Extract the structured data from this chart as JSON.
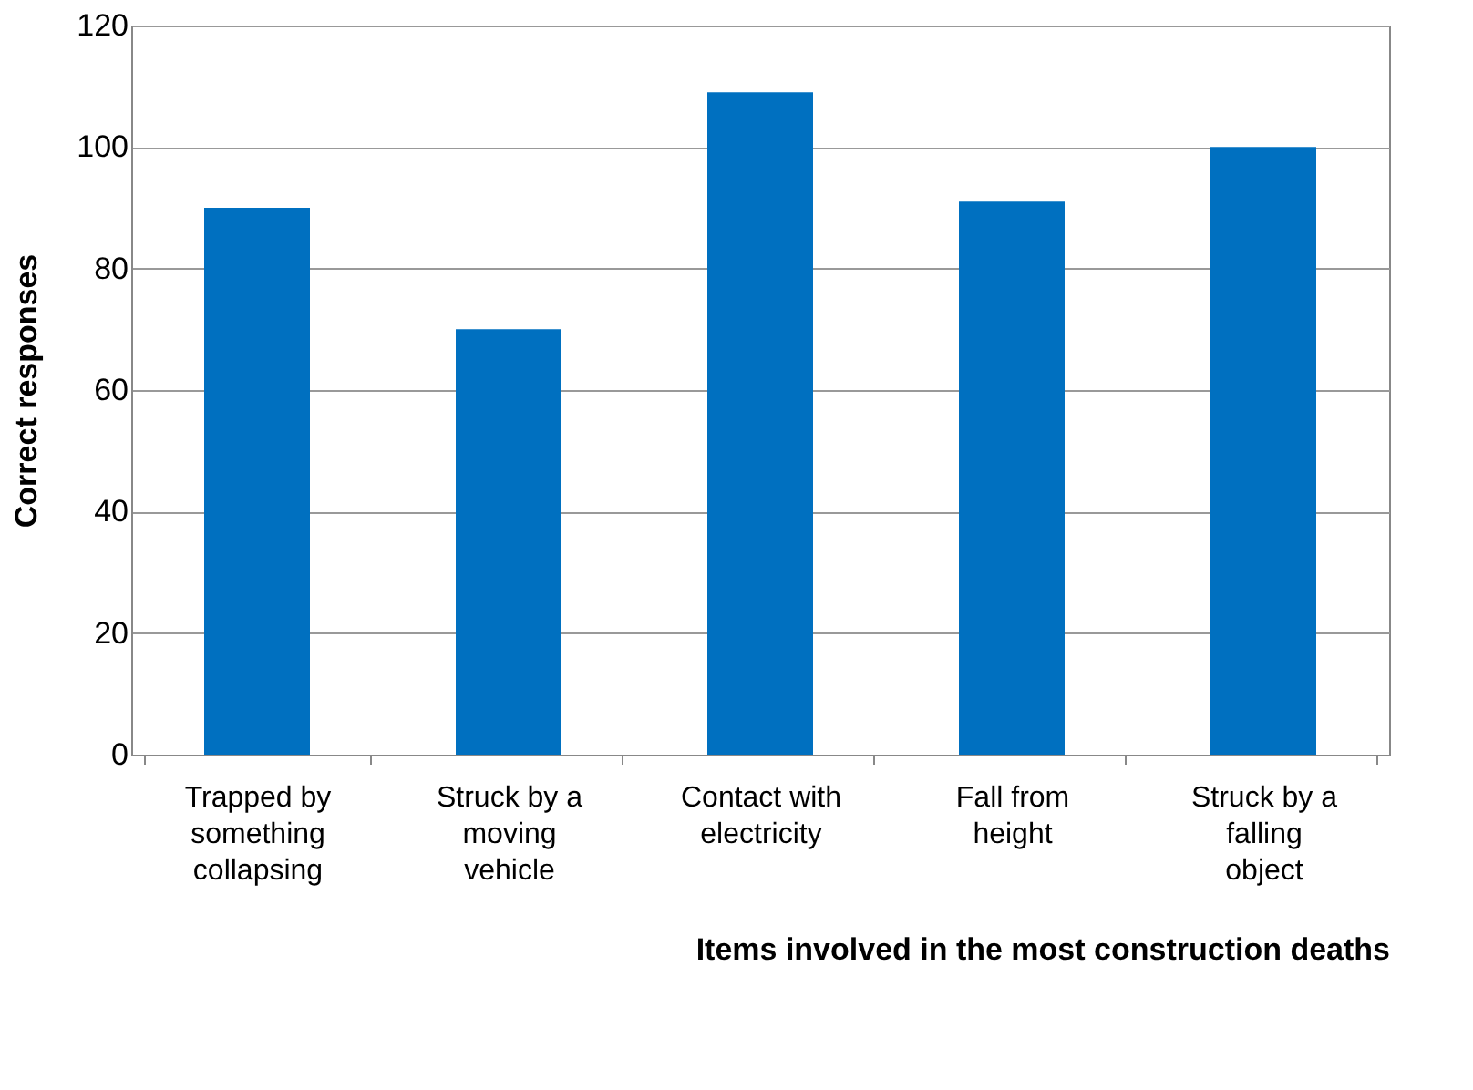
{
  "chart_data": {
    "type": "bar",
    "categories": [
      "Trapped by something collapsing",
      "Struck by a moving vehicle",
      "Contact with electricity",
      "Fall from height",
      "Struck by a falling object"
    ],
    "values": [
      90,
      70,
      109,
      91,
      100
    ],
    "color": "#0070c0",
    "xlabel": "Items involved in the most construction deaths",
    "ylabel": "Correct responses",
    "ylim": [
      0,
      120
    ],
    "yticks": [
      0,
      20,
      40,
      60,
      80,
      100,
      120
    ],
    "grid": "y"
  }
}
